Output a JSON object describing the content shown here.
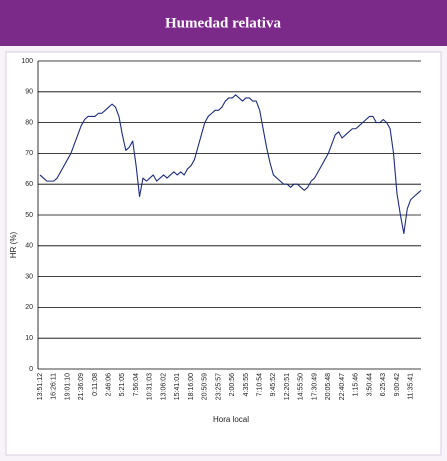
{
  "chart_data": {
    "type": "line",
    "title": "Humedad relativa",
    "xlabel": "Hora local",
    "ylabel": "HR (%)",
    "categories": [
      "13:51:12",
      null,
      null,
      null,
      "16:26:11",
      null,
      null,
      null,
      "19:01:10",
      null,
      null,
      null,
      "21:36:09",
      null,
      null,
      null,
      "0:11:08",
      null,
      null,
      null,
      "2:46:06",
      null,
      null,
      null,
      "5:21:05",
      null,
      null,
      null,
      "7:56:04",
      null,
      null,
      null,
      "10:31:03",
      null,
      null,
      null,
      "13:06:02",
      null,
      null,
      null,
      "15:41:01",
      null,
      null,
      null,
      "18:16:00",
      null,
      null,
      null,
      "20:50:59",
      null,
      null,
      null,
      "23:25:57",
      null,
      null,
      null,
      "2:00:56",
      null,
      null,
      null,
      "4:35:55",
      null,
      null,
      null,
      "7:10:54",
      null,
      null,
      null,
      "9:45:52",
      null,
      null,
      null,
      "12:20:51",
      null,
      null,
      null,
      "14:55:50",
      null,
      null,
      null,
      "17:30:49",
      null,
      null,
      null,
      "20:05:48",
      null,
      null,
      null,
      "22:40:47",
      null,
      null,
      null,
      "1:15:46",
      null,
      null,
      null,
      "3:50:44",
      null,
      null,
      null,
      "6:25:43",
      null,
      null,
      null,
      "9:00:42",
      null,
      null,
      null,
      "11:35:41",
      null,
      null,
      null
    ],
    "series": [
      {
        "name": "HR",
        "color": "#1f2d7a",
        "values": [
          63,
          62,
          61,
          61,
          61,
          62,
          64,
          66,
          68,
          70,
          73,
          76,
          79,
          81,
          82,
          82,
          82,
          83,
          83,
          84,
          85,
          86,
          85,
          82,
          76,
          71,
          72,
          74,
          66,
          56,
          62,
          61,
          62,
          63,
          61,
          62,
          63,
          62,
          63,
          64,
          63,
          64,
          63,
          65,
          66,
          68,
          72,
          76,
          80,
          82,
          83,
          84,
          84,
          85,
          87,
          88,
          88,
          89,
          88,
          87,
          88,
          88,
          87,
          87,
          84,
          78,
          72,
          67,
          63,
          62,
          61,
          60,
          60,
          59,
          60,
          60,
          59,
          58,
          59,
          61,
          62,
          64,
          66,
          68,
          70,
          73,
          76,
          77,
          75,
          76,
          77,
          78,
          78,
          79,
          80,
          81,
          82,
          82,
          80,
          80,
          81,
          80,
          78,
          70,
          57,
          50,
          44,
          52,
          55,
          56,
          57,
          58
        ]
      }
    ],
    "ylim": [
      0,
      100
    ],
    "yticks": [
      0,
      10,
      20,
      30,
      40,
      50,
      60,
      70,
      80,
      90,
      100
    ],
    "grid": true
  }
}
